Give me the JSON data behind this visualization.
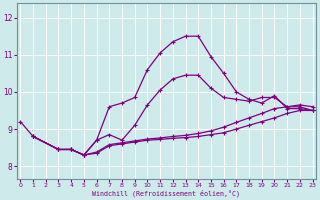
{
  "xlabel": "Windchill (Refroidissement éolien,°C)",
  "background_color": "#ceeaea",
  "line_color": "#800080",
  "grid_color": "#b0d8d8",
  "x_ticks": [
    0,
    1,
    2,
    3,
    4,
    5,
    6,
    7,
    8,
    9,
    10,
    11,
    12,
    13,
    14,
    15,
    16,
    17,
    18,
    19,
    20,
    21,
    22,
    23
  ],
  "y_ticks": [
    8,
    9,
    10,
    11,
    12
  ],
  "xlim": [
    -0.3,
    23.3
  ],
  "ylim": [
    7.65,
    12.4
  ],
  "series": [
    {
      "x": [
        1,
        3,
        4,
        5,
        6,
        7,
        8,
        9,
        10,
        11,
        12,
        13,
        14,
        15,
        16,
        17,
        18,
        19,
        20,
        21,
        22,
        23
      ],
      "y": [
        8.8,
        8.45,
        8.45,
        8.3,
        8.35,
        8.55,
        8.6,
        8.65,
        8.7,
        8.72,
        8.75,
        8.77,
        8.8,
        8.85,
        8.9,
        9.0,
        9.1,
        9.2,
        9.3,
        9.42,
        9.5,
        9.5
      ],
      "marker": "+",
      "markersize": 3,
      "linewidth": 0.9
    },
    {
      "x": [
        1,
        3,
        4,
        5,
        6,
        7,
        8,
        9,
        10,
        11,
        12,
        13,
        14,
        15,
        16,
        17,
        18,
        19,
        20,
        21,
        22,
        23
      ],
      "y": [
        8.8,
        8.45,
        8.45,
        8.3,
        8.38,
        8.58,
        8.63,
        8.68,
        8.73,
        8.76,
        8.8,
        8.83,
        8.88,
        8.95,
        9.05,
        9.18,
        9.3,
        9.42,
        9.55,
        9.6,
        9.65,
        9.6
      ],
      "marker": "+",
      "markersize": 3,
      "linewidth": 0.9
    },
    {
      "x": [
        0,
        1,
        3,
        4,
        5,
        6,
        7,
        8,
        9,
        10,
        11,
        12,
        13,
        14,
        15,
        16,
        17,
        18,
        19,
        20,
        21,
        22,
        23
      ],
      "y": [
        9.2,
        8.8,
        8.45,
        8.45,
        8.3,
        8.7,
        8.85,
        8.7,
        9.1,
        9.65,
        10.05,
        10.35,
        10.45,
        10.45,
        10.1,
        9.85,
        9.8,
        9.75,
        9.85,
        9.85,
        9.6,
        9.6,
        9.5
      ],
      "marker": "+",
      "markersize": 3,
      "linewidth": 0.9
    },
    {
      "x": [
        1,
        3,
        4,
        5,
        6,
        7,
        8,
        9,
        10,
        11,
        12,
        13,
        14,
        15,
        16,
        17,
        18,
        19,
        20,
        21,
        22,
        23
      ],
      "y": [
        8.8,
        8.45,
        8.45,
        8.3,
        8.7,
        9.6,
        9.7,
        9.85,
        10.6,
        11.05,
        11.35,
        11.5,
        11.5,
        10.95,
        10.5,
        10.0,
        9.8,
        9.7,
        9.9,
        9.55,
        9.55,
        9.5
      ],
      "marker": "+",
      "markersize": 3,
      "linewidth": 0.9
    }
  ]
}
